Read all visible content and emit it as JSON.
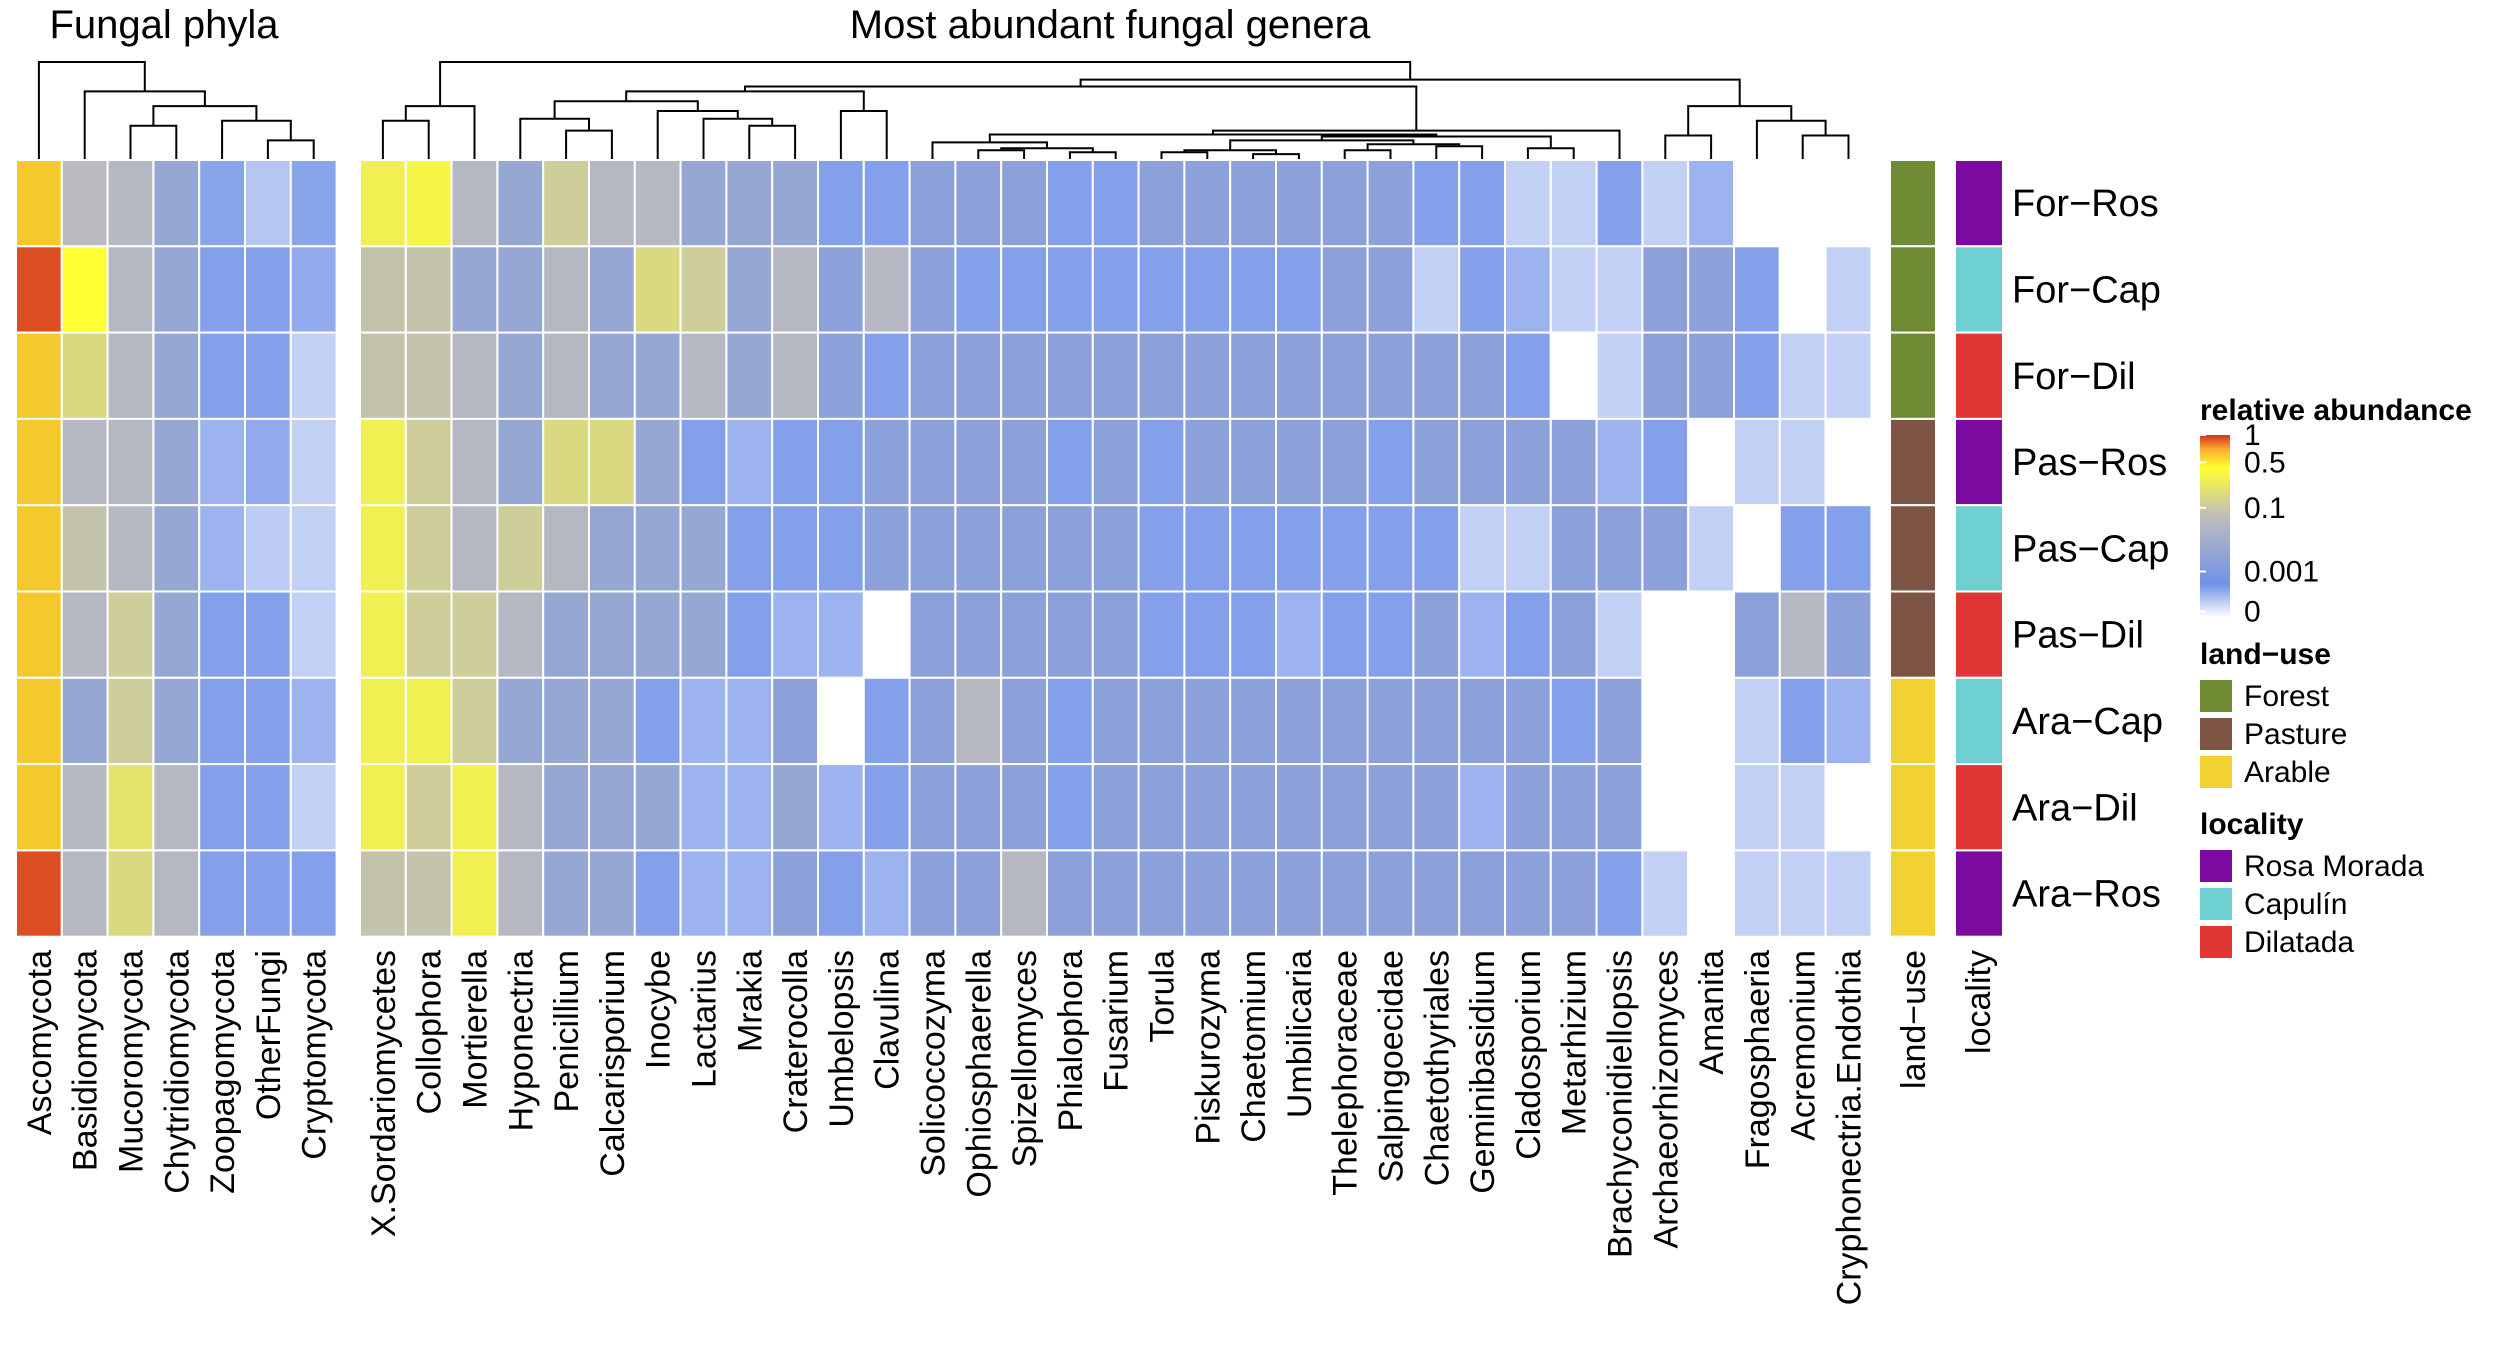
{
  "chart_data": {
    "type": "heatmap",
    "titles": {
      "phyla": "Fungal phyla",
      "genera": "Most abundant fungal genera"
    },
    "rows": [
      "For−Ros",
      "For−Cap",
      "For−Dil",
      "Pas−Ros",
      "Pas−Cap",
      "Pas−Dil",
      "Ara−Cap",
      "Ara−Dil",
      "Ara−Ros"
    ],
    "phyla_columns": [
      "Ascomycota",
      "Basidiomycota",
      "Mucoromycota",
      "Chytridiomycota",
      "Zoopagomycota",
      "OtherFungi",
      "Cryptomycota"
    ],
    "genera_columns": [
      "X.Sordariomycetes",
      "Collophora",
      "Mortierella",
      "Hyponectria",
      "Penicillium",
      "Calcarisporium",
      "Inocybe",
      "Lactarius",
      "Mrakia",
      "Craterocolla",
      "Umbelopsis",
      "Clavulina",
      "Solicoccozyma",
      "Ophiosphaerella",
      "Spizellomyces",
      "Phialophora",
      "Fusarium",
      "Torula",
      "Piskurozyma",
      "Chaetomium",
      "Umbilicaria",
      "Thelephoraceae",
      "Salpingoecidae",
      "Chaetothyriales",
      "Geminibasidium",
      "Cladosporium",
      "Metarhizium",
      "Brachyconidiellopsis",
      "Archaeorhizomyces",
      "Amanita",
      "Fragosphaeria",
      "Acremonium",
      "Cryphonectria.Endothia"
    ],
    "phyla_values": [
      [
        0.6,
        0.08,
        0.06,
        0.01,
        0.0004,
        8e-05,
        0.0004
      ],
      [
        0.9,
        0.5,
        0.06,
        0.01,
        0.0005,
        0.0005,
        0.0003
      ],
      [
        0.6,
        0.2,
        0.06,
        0.01,
        0.0005,
        0.0005,
        5e-05
      ],
      [
        0.6,
        0.06,
        0.06,
        0.01,
        0.0002,
        0.0003,
        5e-05
      ],
      [
        0.6,
        0.12,
        0.06,
        0.01,
        0.0002,
        6e-05,
        5e-05
      ],
      [
        0.6,
        0.06,
        0.15,
        0.01,
        0.0005,
        0.0005,
        5e-05
      ],
      [
        0.6,
        0.01,
        0.15,
        0.01,
        0.0005,
        0.0005,
        0.0002
      ],
      [
        0.6,
        0.06,
        0.25,
        0.06,
        0.0005,
        0.0005,
        5e-05
      ],
      [
        0.9,
        0.06,
        0.2,
        0.06,
        0.0005,
        0.0005,
        0.0005
      ]
    ],
    "genera_values": [
      [
        0.35,
        0.4,
        0.06,
        0.01,
        0.15,
        0.06,
        0.06,
        0.01,
        0.01,
        0.01,
        0.0005,
        0.0005,
        0.005,
        0.005,
        0.005,
        0.0005,
        0.0005,
        0.005,
        0.005,
        0.005,
        0.005,
        0.005,
        0.005,
        0.0005,
        0.0005,
        5e-05,
        5e-05,
        0.0005,
        5e-05,
        0.0002,
        0,
        0,
        0
      ],
      [
        0.12,
        0.12,
        0.01,
        0.01,
        0.06,
        0.01,
        0.2,
        0.15,
        0.01,
        0.06,
        0.005,
        0.06,
        0.005,
        0.0005,
        0.0005,
        0.0005,
        0.0005,
        0.0005,
        0.0005,
        0.0005,
        0.0005,
        0.005,
        0.005,
        5e-05,
        0.0005,
        0.0002,
        5e-05,
        5e-05,
        0.005,
        0.005,
        0.0005,
        0,
        5e-05
      ],
      [
        0.12,
        0.12,
        0.06,
        0.01,
        0.06,
        0.01,
        0.01,
        0.06,
        0.01,
        0.06,
        0.005,
        0.0005,
        0.005,
        0.005,
        0.005,
        0.005,
        0.005,
        0.005,
        0.005,
        0.005,
        0.005,
        0.005,
        0.005,
        0.005,
        0.005,
        0.0005,
        0,
        5e-05,
        0.005,
        0.005,
        0.0005,
        5e-05,
        5e-05
      ],
      [
        0.35,
        0.15,
        0.06,
        0.01,
        0.2,
        0.2,
        0.01,
        0.0005,
        0.0002,
        0.0005,
        0.0005,
        0.005,
        0.005,
        0.005,
        0.005,
        0.0005,
        0.005,
        0.0005,
        0.005,
        0.005,
        0.005,
        0.005,
        0.0005,
        0.005,
        0.005,
        0.005,
        0.005,
        0.0002,
        0.0005,
        0,
        5e-05,
        5e-05,
        0
      ],
      [
        0.35,
        0.15,
        0.06,
        0.15,
        0.06,
        0.01,
        0.01,
        0.01,
        0.0005,
        0.0005,
        0.0005,
        0.005,
        0.005,
        0.005,
        0.005,
        0.005,
        0.005,
        0.0005,
        0.0005,
        0.0005,
        0.0005,
        0.0005,
        0.0005,
        0.0005,
        5e-05,
        5e-05,
        0.005,
        0.005,
        0.005,
        5e-05,
        0,
        0.0005,
        0.0005
      ],
      [
        0.35,
        0.15,
        0.15,
        0.06,
        0.01,
        0.01,
        0.01,
        0.01,
        0.0005,
        0.0002,
        0.0002,
        0,
        0.005,
        0.005,
        0.005,
        0.005,
        0.005,
        0.0005,
        0.0005,
        0.0005,
        0.0002,
        0.0005,
        0.0005,
        0.005,
        0.0002,
        0.0005,
        0.005,
        5e-05,
        0,
        0,
        0.005,
        0.06,
        0.005
      ],
      [
        0.35,
        0.35,
        0.15,
        0.01,
        0.01,
        0.01,
        0.0005,
        0.0002,
        0.0002,
        0.005,
        0,
        0.0005,
        0.005,
        0.06,
        0.005,
        0.0005,
        0.005,
        0.005,
        0.005,
        0.005,
        0.005,
        0.005,
        0.005,
        0.005,
        0.005,
        0.005,
        0.0005,
        0.005,
        0,
        0,
        5e-05,
        0.0005,
        0.0002
      ],
      [
        0.35,
        0.15,
        0.35,
        0.06,
        0.01,
        0.01,
        0.01,
        0.0002,
        0.0002,
        0.01,
        0.0002,
        0.0005,
        0.005,
        0.005,
        0.005,
        0.0005,
        0.005,
        0.005,
        0.005,
        0.005,
        0.005,
        0.005,
        0.005,
        0.005,
        0.0002,
        0.005,
        0.005,
        0.005,
        0,
        0,
        5e-05,
        5e-05,
        0
      ],
      [
        0.12,
        0.12,
        0.35,
        0.06,
        0.01,
        0.01,
        0.0005,
        0.0002,
        0.0002,
        0.005,
        0.0005,
        0.0002,
        0.005,
        0.005,
        0.06,
        0.005,
        0.005,
        0.005,
        0.005,
        0.005,
        0.005,
        0.005,
        0.005,
        0.005,
        0.005,
        0.005,
        0.005,
        0.0005,
        5e-05,
        0,
        5e-05,
        5e-05,
        5e-05
      ]
    ],
    "annotation_columns": [
      "land−use",
      "locality"
    ],
    "row_land_use": [
      "Forest",
      "Forest",
      "Forest",
      "Pasture",
      "Pasture",
      "Pasture",
      "Arable",
      "Arable",
      "Arable"
    ],
    "row_locality": [
      "Rosa Morada",
      "Capulín",
      "Dilatada",
      "Rosa Morada",
      "Capulín",
      "Dilatada",
      "Capulín",
      "Dilatada",
      "Rosa Morada"
    ],
    "color_scale": {
      "title": "relative abundance",
      "tick_labels": [
        "1",
        "0.5",
        "0.1",
        "0.001",
        "0"
      ],
      "breaks": [
        0,
        0.001,
        0.1,
        0.5,
        1
      ],
      "colors": [
        "#ffffff",
        "#7191e8",
        "#bdbdbd",
        "#ffff33",
        "#d7301f"
      ]
    },
    "legend_land_use": {
      "title": "land−use",
      "items": [
        {
          "label": "Forest",
          "color": "#6e8a32"
        },
        {
          "label": "Pasture",
          "color": "#7e5444"
        },
        {
          "label": "Arable",
          "color": "#f2d233"
        }
      ]
    },
    "legend_locality": {
      "title": "locality",
      "items": [
        {
          "label": "Rosa Morada",
          "color": "#7b0aa0"
        },
        {
          "label": "Capulín",
          "color": "#6fd0d2"
        },
        {
          "label": "Dilatada",
          "color": "#e03636"
        }
      ]
    }
  }
}
